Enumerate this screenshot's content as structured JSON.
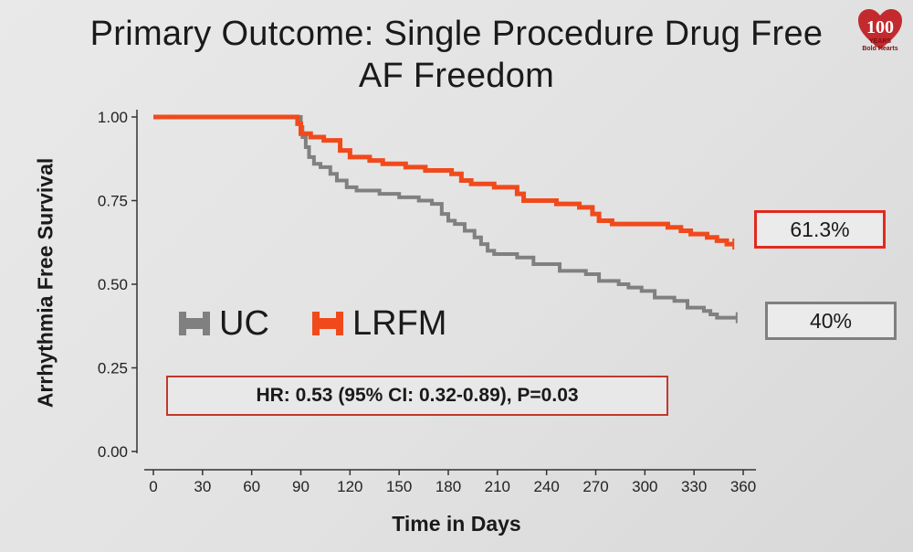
{
  "title": {
    "line1": "Primary Outcome: Single Procedure Drug Free",
    "line2": "AF Freedom"
  },
  "logo": {
    "icon": "heart-100-years-logo",
    "number": "100",
    "caption": "YEARS",
    "tagline": "Bold Hearts",
    "color": "#c0161b"
  },
  "hr_text": "HR: 0.53 (95% CI: 0.32-0.89), P=0.03",
  "chart_data": {
    "type": "line",
    "step": true,
    "xlabel": "Time in Days",
    "ylabel": "Arrhythmia Free Survival",
    "xlim": [
      0,
      360
    ],
    "ylim": [
      0,
      1
    ],
    "x_ticks": [
      "0",
      "30",
      "60",
      "90",
      "120",
      "150",
      "180",
      "210",
      "240",
      "270",
      "300",
      "330",
      "360"
    ],
    "y_ticks": [
      "0.00",
      "0.25",
      "0.50",
      "0.75",
      "1.00"
    ],
    "grid": false,
    "legend_position": "left-center",
    "series": [
      {
        "name": "UC",
        "color": "#808080",
        "end_label": "40%",
        "points": [
          [
            0,
            1.0
          ],
          [
            89,
            1.0
          ],
          [
            90,
            0.97
          ],
          [
            91,
            0.94
          ],
          [
            93,
            0.91
          ],
          [
            95,
            0.88
          ],
          [
            98,
            0.86
          ],
          [
            102,
            0.85
          ],
          [
            108,
            0.83
          ],
          [
            112,
            0.81
          ],
          [
            118,
            0.79
          ],
          [
            124,
            0.78
          ],
          [
            138,
            0.77
          ],
          [
            150,
            0.76
          ],
          [
            162,
            0.75
          ],
          [
            170,
            0.74
          ],
          [
            176,
            0.71
          ],
          [
            180,
            0.69
          ],
          [
            184,
            0.68
          ],
          [
            190,
            0.66
          ],
          [
            196,
            0.64
          ],
          [
            200,
            0.62
          ],
          [
            204,
            0.6
          ],
          [
            208,
            0.59
          ],
          [
            222,
            0.58
          ],
          [
            232,
            0.56
          ],
          [
            248,
            0.54
          ],
          [
            264,
            0.53
          ],
          [
            272,
            0.51
          ],
          [
            284,
            0.5
          ],
          [
            290,
            0.49
          ],
          [
            298,
            0.48
          ],
          [
            306,
            0.46
          ],
          [
            318,
            0.45
          ],
          [
            326,
            0.43
          ],
          [
            336,
            0.42
          ],
          [
            340,
            0.41
          ],
          [
            344,
            0.4
          ],
          [
            356,
            0.4
          ]
        ]
      },
      {
        "name": "LRFM",
        "color": "#f04a1c",
        "end_label": "61.3%",
        "points": [
          [
            0,
            1.0
          ],
          [
            87,
            1.0
          ],
          [
            88,
            0.98
          ],
          [
            90,
            0.95
          ],
          [
            96,
            0.94
          ],
          [
            104,
            0.93
          ],
          [
            114,
            0.9
          ],
          [
            120,
            0.88
          ],
          [
            132,
            0.87
          ],
          [
            140,
            0.86
          ],
          [
            154,
            0.85
          ],
          [
            166,
            0.84
          ],
          [
            182,
            0.83
          ],
          [
            188,
            0.81
          ],
          [
            194,
            0.8
          ],
          [
            208,
            0.79
          ],
          [
            222,
            0.77
          ],
          [
            226,
            0.75
          ],
          [
            246,
            0.74
          ],
          [
            260,
            0.73
          ],
          [
            268,
            0.71
          ],
          [
            272,
            0.69
          ],
          [
            280,
            0.68
          ],
          [
            300,
            0.68
          ],
          [
            314,
            0.67
          ],
          [
            322,
            0.66
          ],
          [
            328,
            0.65
          ],
          [
            338,
            0.64
          ],
          [
            344,
            0.63
          ],
          [
            350,
            0.62
          ],
          [
            354,
            0.62
          ]
        ]
      }
    ]
  }
}
